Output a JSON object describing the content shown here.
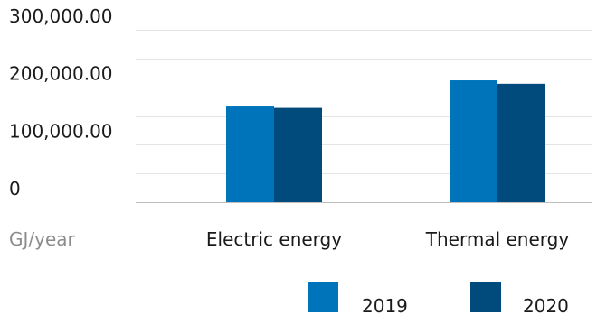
{
  "chart_data": {
    "type": "bar",
    "categories": [
      "Electric energy",
      "Thermal energy"
    ],
    "series": [
      {
        "name": "2019",
        "values": [
          168000,
          212000
        ],
        "color": "#0074bb"
      },
      {
        "name": "2020",
        "values": [
          164000,
          206000
        ],
        "color": "#004a7c"
      }
    ],
    "y_ticks": [
      {
        "value": 0,
        "label": "0"
      },
      {
        "value": 100000,
        "label": "100,000.00"
      },
      {
        "value": 200000,
        "label": "200,000.00"
      },
      {
        "value": 300000,
        "label": "300,000.00"
      }
    ],
    "ylim": [
      0,
      300000
    ],
    "unit_label": "GJ/year",
    "grid": true,
    "legend_position": "bottom-right",
    "colors": {
      "grid": "#e4e4e4",
      "axis": "#bdbdbd",
      "unit": "#8c8c8c"
    }
  }
}
